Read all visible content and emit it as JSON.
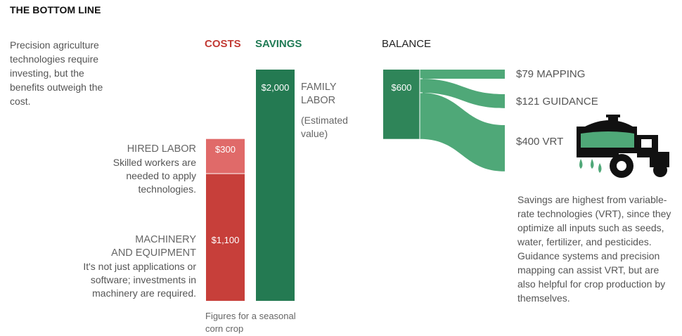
{
  "title": "THE BOTTOM LINE",
  "intro": "Precision agriculture technologies require investing, but the benefits outweigh the cost.",
  "headers": {
    "costs": "COSTS",
    "savings": "SAVINGS",
    "balance": "BALANCE"
  },
  "labels": {
    "hired_head": "HIRED LABOR",
    "hired_desc": "Skilled workers are needed to apply technologies.",
    "machinery_head_1": "MACHINERY",
    "machinery_head_2": "AND EQUIPMENT",
    "machinery_desc": "It's not just applications or software; investments in machinery are required.",
    "family_head": "FAMILY LABOR",
    "family_note": "(Estimated value)"
  },
  "footnote": "Figures for a seasonal corn crop",
  "vrt_note": "Savings are highest from variable-rate technologies (VRT), since they optimize all inputs such as seeds, water, fertilizer, and pesticides. Guidance systems and precision mapping can assist VRT, but are also helpful for crop production by themselves.",
  "colors": {
    "machinery": "#c73f3a",
    "hired": "#e06a69",
    "savings": "#247a52",
    "balance": "#2f8559",
    "flow": "#4fa878"
  },
  "icons": {
    "tractor": "tractor-sprayer-icon"
  },
  "chart_data": {
    "type": "bar",
    "unit": "$",
    "costs": [
      {
        "name": "MACHINERY AND EQUIPMENT",
        "value": 1100,
        "label": "$1,100"
      },
      {
        "name": "HIRED LABOR",
        "value": 300,
        "label": "$300"
      }
    ],
    "savings": [
      {
        "name": "FAMILY LABOR",
        "value": 2000,
        "label": "$2,000"
      }
    ],
    "balance": {
      "value": 600,
      "label": "$600"
    },
    "balance_breakdown": [
      {
        "name": "MAPPING",
        "value": 79,
        "label": "$79 MAPPING"
      },
      {
        "name": "GUIDANCE",
        "value": 121,
        "label": "$121 GUIDANCE"
      },
      {
        "name": "VRT",
        "value": 400,
        "label": "$400 VRT"
      }
    ]
  }
}
